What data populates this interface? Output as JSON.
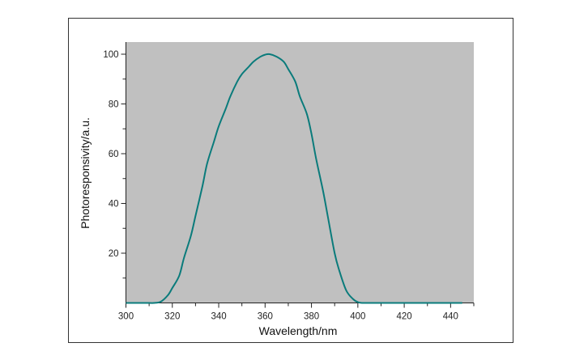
{
  "chart_data": {
    "type": "line",
    "title": "",
    "xlabel": "Wavelength/nm",
    "ylabel": "Photoresponsivity/a.u.",
    "xlim": [
      300,
      450
    ],
    "ylim": [
      0,
      105
    ],
    "xticks": [
      300,
      320,
      340,
      360,
      380,
      400,
      420,
      440
    ],
    "yticks": [
      20,
      40,
      60,
      80,
      100
    ],
    "grid": false,
    "background": "#c0c0c0",
    "line_color": "#0a7b7b",
    "series": [
      {
        "name": "Photoresponsivity",
        "x": [
          300,
          305,
          310,
          312,
          315,
          318,
          320,
          323,
          325,
          328,
          330,
          333,
          335,
          338,
          340,
          343,
          345,
          348,
          350,
          353,
          355,
          358,
          360,
          362,
          365,
          368,
          370,
          373,
          375,
          378,
          380,
          382,
          385,
          387,
          390,
          392,
          395,
          398,
          400,
          402,
          405,
          410,
          420,
          430,
          440,
          445
        ],
        "y": [
          0,
          0,
          0,
          0,
          0.5,
          3,
          6,
          11,
          18,
          27,
          35,
          47,
          56,
          65,
          71,
          78,
          83,
          89,
          92,
          95,
          97,
          99,
          99.8,
          100,
          99,
          97,
          94,
          89,
          83,
          76,
          68,
          58,
          45,
          35,
          20,
          13,
          5,
          1.5,
          0.3,
          0,
          0,
          0,
          0,
          0,
          0,
          0
        ]
      }
    ]
  }
}
